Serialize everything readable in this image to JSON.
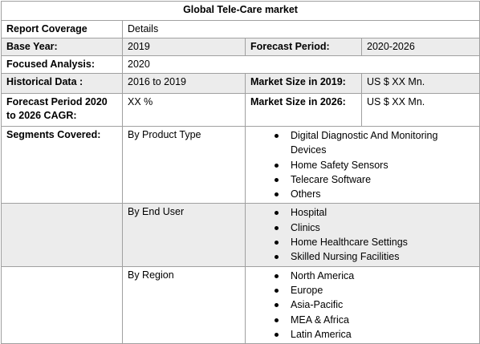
{
  "title": "Global Tele-Care market",
  "table": {
    "rows": [
      [
        "Report Coverage",
        "Details"
      ],
      [
        "Base Year:",
        "2019",
        "Forecast Period:",
        "2020-2026"
      ],
      [
        "Focused Analysis:",
        "2020"
      ],
      [
        "Historical Data :",
        "2016 to 2019",
        "Market Size in 2019:",
        "US $ XX Mn."
      ],
      [
        "Forecast Period 2020 to 2026 CAGR:",
        "XX %",
        "Market Size in 2026:",
        "US $ XX Mn."
      ]
    ],
    "segments": {
      "label": "Segments Covered:",
      "groups": [
        {
          "name": "By Product Type",
          "items": [
            "Digital Diagnostic And Monitoring Devices",
            "Home Safety Sensors",
            "Telecare Software",
            "Others"
          ]
        },
        {
          "name": "By End User",
          "items": [
            "Hospital",
            "Clinics",
            "Home Healthcare Settings",
            "Skilled Nursing Facilities"
          ]
        },
        {
          "name": "By Region",
          "items": [
            "North America",
            "Europe",
            "Asia-Pacific",
            "MEA & Africa",
            "Latin America"
          ]
        }
      ]
    }
  }
}
